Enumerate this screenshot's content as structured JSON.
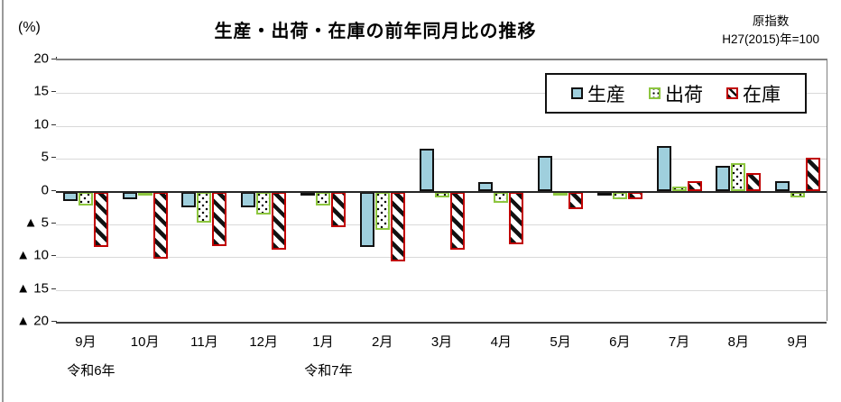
{
  "header": {
    "percent_label": "(%)",
    "title": "生産・出荷・在庫の前年同月比の推移",
    "index_note_line1": "原指数",
    "index_note_line2": "H27(2015)年=100"
  },
  "legend": {
    "items": [
      {
        "key": "seisan",
        "label": "生産"
      },
      {
        "key": "shukka",
        "label": "出荷"
      },
      {
        "key": "zaiko",
        "label": "在庫"
      }
    ]
  },
  "chart_data": {
    "type": "bar",
    "title": "生産・出荷・在庫の前年同月比の推移",
    "ylabel": "(%)",
    "ylim": [
      -20,
      20
    ],
    "ytick_interval": 5,
    "ytick_labels": [
      "20",
      "15",
      "10",
      "5",
      "0",
      "▲ 5",
      "▲ 10",
      "▲ 15",
      "▲ 20"
    ],
    "grid": true,
    "legend_position": "top-right-inside",
    "categories": [
      "9月",
      "10月",
      "11月",
      "12月",
      "1月",
      "2月",
      "3月",
      "4月",
      "5月",
      "6月",
      "7月",
      "8月",
      "9月"
    ],
    "era_labels": [
      {
        "text": "令和6年",
        "month_index": 0
      },
      {
        "text": "令和7年",
        "month_index": 4
      }
    ],
    "series": [
      {
        "name": "生産",
        "key": "seisan",
        "values": [
          -1.5,
          -1.1,
          -2.4,
          -2.4,
          -0.4,
          -8.4,
          6.5,
          1.4,
          5.4,
          -0.4,
          6.9,
          3.9,
          1.6
        ]
      },
      {
        "name": "出荷",
        "key": "shukka",
        "values": [
          -2.1,
          -0.3,
          -4.7,
          -3.5,
          -2.1,
          -5.9,
          -0.9,
          -1.7,
          -0.5,
          -1.1,
          0.8,
          4.3,
          -0.9
        ]
      },
      {
        "name": "在庫",
        "key": "zaiko",
        "values": [
          -8.5,
          -10.2,
          -8.3,
          -8.8,
          -5.4,
          -10.6,
          -8.8,
          -8.0,
          -2.7,
          -1.1,
          1.6,
          2.8,
          5.1
        ]
      }
    ],
    "colors": {
      "seisan_fill": "#9fcfdd",
      "seisan_border": "#111111",
      "shukka_border": "#8dc63f",
      "zaiko_border": "#c00000",
      "gridline": "#d9d9d9",
      "zero_line": "#262626"
    }
  }
}
